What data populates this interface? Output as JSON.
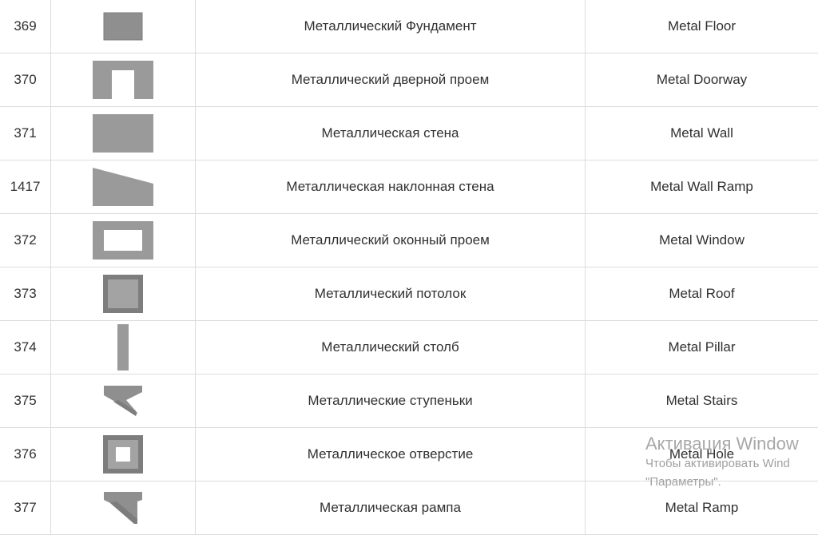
{
  "rows": [
    {
      "id": "369",
      "icon": "metal-floor-icon",
      "name_ru": "Металлический Фундамент",
      "name_en": "Metal Floor"
    },
    {
      "id": "370",
      "icon": "metal-doorway-icon",
      "name_ru": "Металлический дверной проем",
      "name_en": "Metal Doorway"
    },
    {
      "id": "371",
      "icon": "metal-wall-icon",
      "name_ru": "Металлическая стена",
      "name_en": "Metal Wall"
    },
    {
      "id": "1417",
      "icon": "metal-wall-ramp-icon",
      "name_ru": "Металлическая наклонная стена",
      "name_en": "Metal Wall Ramp"
    },
    {
      "id": "372",
      "icon": "metal-window-icon",
      "name_ru": "Металлический оконный проем",
      "name_en": "Metal Window"
    },
    {
      "id": "373",
      "icon": "metal-roof-icon",
      "name_ru": "Металлический потолок",
      "name_en": "Metal Roof"
    },
    {
      "id": "374",
      "icon": "metal-pillar-icon",
      "name_ru": "Металлический столб",
      "name_en": "Metal Pillar"
    },
    {
      "id": "375",
      "icon": "metal-stairs-icon",
      "name_ru": "Металлические ступеньки",
      "name_en": "Metal Stairs"
    },
    {
      "id": "376",
      "icon": "metal-hole-icon",
      "name_ru": "Металлическое отверстие",
      "name_en": "Metal Hole"
    },
    {
      "id": "377",
      "icon": "metal-ramp-icon",
      "name_ru": "Металлическая рампа",
      "name_en": "Metal Ramp"
    }
  ],
  "watermark": {
    "title": "Активация Window",
    "line1": "Чтобы активировать Wind",
    "line2": "\"Параметры\"."
  },
  "colors": {
    "icon_fill": "#9a9a9a",
    "icon_dark": "#7d7d7d",
    "grid": "#dcdcdc",
    "text": "#303030"
  }
}
